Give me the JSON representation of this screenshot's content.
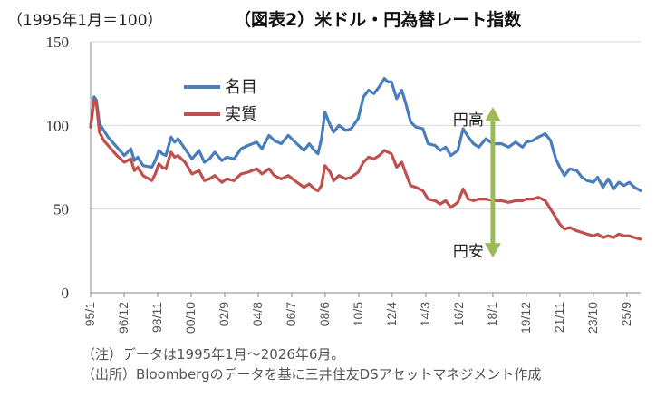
{
  "header": {
    "unit": "（1995年1月＝100）",
    "title": "（図表2）米ドル・円為替レート指数"
  },
  "chart_data": {
    "type": "line",
    "ylim": [
      0,
      150
    ],
    "yticks": [
      "0",
      "50",
      "100",
      "150"
    ],
    "xlim": [
      1995.0,
      2026.45
    ],
    "xtick_labels": [
      "95/1",
      "96/12",
      "98/11",
      "00/10",
      "02/9",
      "04/8",
      "06/7",
      "08/6",
      "10/5",
      "12/4",
      "14/3",
      "16/2",
      "18/1",
      "19/12",
      "21/11",
      "23/10",
      "25/9"
    ],
    "xtick_positions": [
      1995.0,
      1996.917,
      1998.833,
      2000.75,
      2002.667,
      2004.583,
      2006.5,
      2008.417,
      2010.333,
      2012.25,
      2014.167,
      2016.083,
      2018.0,
      2019.917,
      2021.833,
      2023.75,
      2025.667
    ],
    "grid": "horizontal",
    "legend_position": "top-left",
    "series": [
      {
        "name": "名目",
        "color": "#4a7ebb",
        "x": [
          1995.0,
          1995.2,
          1995.33,
          1995.5,
          1995.75,
          1996.0,
          1996.5,
          1996.92,
          1997.3,
          1997.5,
          1997.7,
          1998.0,
          1998.5,
          1998.7,
          1998.9,
          1999.1,
          1999.3,
          1999.6,
          1999.8,
          2000.0,
          2000.4,
          2000.8,
          2001.2,
          2001.5,
          2001.8,
          2002.1,
          2002.5,
          2002.8,
          2003.2,
          2003.6,
          2004.0,
          2004.5,
          2004.8,
          2005.2,
          2005.5,
          2005.9,
          2006.3,
          2006.8,
          2007.2,
          2007.5,
          2007.8,
          2008.0,
          2008.2,
          2008.4,
          2008.7,
          2008.9,
          2009.2,
          2009.6,
          2009.9,
          2010.3,
          2010.6,
          2010.9,
          2011.2,
          2011.5,
          2011.8,
          2012.0,
          2012.2,
          2012.5,
          2012.8,
          2013.0,
          2013.3,
          2013.6,
          2014.0,
          2014.3,
          2014.7,
          2015.0,
          2015.3,
          2015.6,
          2016.0,
          2016.3,
          2016.6,
          2016.9,
          2017.2,
          2017.6,
          2018.0,
          2018.5,
          2018.9,
          2019.3,
          2019.7,
          2019.92,
          2020.3,
          2020.6,
          2021.0,
          2021.3,
          2021.6,
          2021.83,
          2022.1,
          2022.4,
          2022.8,
          2023.1,
          2023.4,
          2023.75,
          2024.0,
          2024.3,
          2024.6,
          2024.9,
          2025.2,
          2025.5,
          2025.8,
          2026.1,
          2026.45
        ],
        "y": [
          100,
          117,
          115,
          101,
          97,
          93,
          87,
          82,
          86,
          79,
          81,
          76,
          75,
          79,
          85,
          83,
          82,
          93,
          90,
          92,
          86,
          80,
          85,
          78,
          80,
          84,
          79,
          81,
          80,
          86,
          88,
          90,
          86,
          94,
          91,
          89,
          94,
          89,
          85,
          89,
          85,
          83,
          92,
          108,
          100,
          96,
          100,
          97,
          98,
          104,
          117,
          121,
          119,
          123,
          128,
          126,
          126,
          116,
          121,
          114,
          102,
          99,
          98,
          89,
          88,
          85,
          87,
          82,
          85,
          98,
          93,
          89,
          87,
          92,
          89,
          89,
          87,
          90,
          87,
          90,
          91,
          93,
          95,
          91,
          80,
          75,
          70,
          74,
          73,
          69,
          67,
          66,
          69,
          63,
          68,
          62,
          66,
          64,
          66,
          63,
          61
        ]
      },
      {
        "name": "実質",
        "color": "#c0504d",
        "x": [
          1995.0,
          1995.2,
          1995.33,
          1995.5,
          1995.75,
          1996.0,
          1996.5,
          1996.92,
          1997.3,
          1997.5,
          1997.7,
          1998.0,
          1998.5,
          1998.7,
          1998.9,
          1999.1,
          1999.3,
          1999.6,
          1999.8,
          2000.0,
          2000.4,
          2000.8,
          2001.2,
          2001.5,
          2001.8,
          2002.1,
          2002.5,
          2002.8,
          2003.2,
          2003.6,
          2004.0,
          2004.5,
          2004.8,
          2005.2,
          2005.5,
          2005.9,
          2006.3,
          2006.8,
          2007.2,
          2007.5,
          2007.8,
          2008.0,
          2008.2,
          2008.4,
          2008.7,
          2008.9,
          2009.2,
          2009.6,
          2009.9,
          2010.3,
          2010.6,
          2010.9,
          2011.2,
          2011.5,
          2011.8,
          2012.0,
          2012.2,
          2012.5,
          2012.8,
          2013.0,
          2013.3,
          2013.6,
          2014.0,
          2014.3,
          2014.7,
          2015.0,
          2015.3,
          2015.6,
          2016.0,
          2016.3,
          2016.6,
          2016.9,
          2017.2,
          2017.6,
          2018.0,
          2018.5,
          2018.9,
          2019.3,
          2019.7,
          2019.92,
          2020.3,
          2020.6,
          2021.0,
          2021.3,
          2021.6,
          2021.83,
          2022.1,
          2022.4,
          2022.8,
          2023.1,
          2023.4,
          2023.75,
          2024.0,
          2024.3,
          2024.6,
          2024.9,
          2025.2,
          2025.5,
          2025.8,
          2026.1,
          2026.45
        ],
        "y": [
          99,
          115,
          113,
          96,
          91,
          88,
          82,
          78,
          80,
          73,
          75,
          70,
          67,
          71,
          77,
          75,
          74,
          84,
          81,
          82,
          78,
          71,
          73,
          67,
          68,
          70,
          66,
          68,
          67,
          71,
          72,
          74,
          71,
          74,
          70,
          68,
          70,
          66,
          63,
          65,
          62,
          61,
          64,
          76,
          72,
          67,
          70,
          68,
          69,
          72,
          78,
          81,
          80,
          82,
          85,
          84,
          83,
          75,
          78,
          72,
          64,
          63,
          61,
          56,
          55,
          53,
          55,
          51,
          54,
          62,
          56,
          55,
          56,
          56,
          55,
          55,
          54,
          55,
          55,
          56,
          56,
          57,
          55,
          50,
          45,
          41,
          38,
          39,
          37,
          36,
          35,
          34,
          35,
          33,
          34,
          33,
          35,
          34,
          34,
          33,
          32
        ]
      }
    ],
    "annotation": {
      "type": "double-arrow",
      "x": 2018.0,
      "y_from": 21,
      "y_to": 111,
      "color": "#9bbb59",
      "label_top": "円高",
      "label_bottom": "円安"
    }
  },
  "notes": [
    "（注）データは1995年1月～2026年6月。",
    "（出所）Bloombergのデータを基に三井住友DSアセットマネジメント作成"
  ]
}
